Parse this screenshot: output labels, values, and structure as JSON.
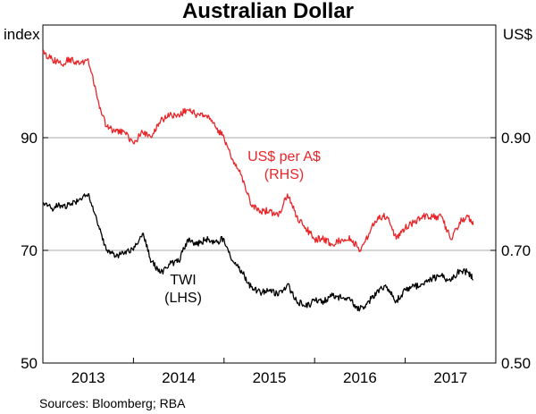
{
  "chart_data": {
    "type": "line",
    "title": "Australian Dollar",
    "source": "Sources: Bloomberg; RBA",
    "x_range": [
      2012.5,
      2017.5
    ],
    "x_ticks": [
      "2013",
      "2014",
      "2015",
      "2016",
      "2017"
    ],
    "x_tick_positions": [
      2013,
      2014,
      2015,
      2016,
      2017
    ],
    "left_axis": {
      "unit": "index",
      "range": [
        50,
        110
      ],
      "ticks": [
        50,
        70,
        90
      ],
      "tick_labels": [
        "50",
        "70",
        "90"
      ]
    },
    "right_axis": {
      "unit": "US$",
      "range": [
        0.5,
        1.1
      ],
      "ticks": [
        0.5,
        0.7,
        0.9
      ],
      "tick_labels": [
        "0.50",
        "0.70",
        "0.90"
      ]
    },
    "grid": "horizontal",
    "series": [
      {
        "name": "US$ per A$",
        "axis_note": "(RHS)",
        "axis": "right",
        "color": "#e8262a",
        "x": [
          2012.5,
          2012.6,
          2012.7,
          2012.8,
          2012.9,
          2013.0,
          2013.1,
          2013.2,
          2013.3,
          2013.4,
          2013.5,
          2013.6,
          2013.7,
          2013.8,
          2013.9,
          2014.0,
          2014.1,
          2014.2,
          2014.3,
          2014.4,
          2014.5,
          2014.6,
          2014.7,
          2014.8,
          2014.9,
          2015.0,
          2015.1,
          2015.2,
          2015.3,
          2015.4,
          2015.5,
          2015.6,
          2015.7,
          2015.8,
          2015.9,
          2016.0,
          2016.1,
          2016.2,
          2016.3,
          2016.4,
          2016.5,
          2016.6,
          2016.7,
          2016.8,
          2016.9,
          2017.0,
          2017.1,
          2017.2,
          2017.25
        ],
        "values": [
          1.05,
          1.04,
          1.03,
          1.04,
          1.03,
          1.04,
          0.97,
          0.92,
          0.91,
          0.91,
          0.89,
          0.91,
          0.9,
          0.93,
          0.94,
          0.94,
          0.95,
          0.94,
          0.94,
          0.92,
          0.9,
          0.86,
          0.83,
          0.78,
          0.77,
          0.77,
          0.76,
          0.8,
          0.76,
          0.74,
          0.72,
          0.72,
          0.71,
          0.72,
          0.72,
          0.7,
          0.73,
          0.76,
          0.76,
          0.72,
          0.74,
          0.75,
          0.76,
          0.76,
          0.76,
          0.72,
          0.75,
          0.76,
          0.745
        ]
      },
      {
        "name": "TWI",
        "axis_note": "(LHS)",
        "axis": "left",
        "color": "#000000",
        "x": [
          2012.5,
          2012.6,
          2012.7,
          2012.8,
          2012.9,
          2013.0,
          2013.1,
          2013.2,
          2013.3,
          2013.4,
          2013.5,
          2013.6,
          2013.7,
          2013.8,
          2013.9,
          2014.0,
          2014.1,
          2014.2,
          2014.3,
          2014.4,
          2014.5,
          2014.6,
          2014.7,
          2014.8,
          2014.9,
          2015.0,
          2015.1,
          2015.2,
          2015.3,
          2015.4,
          2015.5,
          2015.6,
          2015.7,
          2015.8,
          2015.9,
          2016.0,
          2016.1,
          2016.2,
          2016.3,
          2016.4,
          2016.5,
          2016.6,
          2016.7,
          2016.8,
          2016.9,
          2017.0,
          2017.1,
          2017.2,
          2017.25
        ],
        "values": [
          78.5,
          77.5,
          78.0,
          78.0,
          79.0,
          80.0,
          75.0,
          70.0,
          69.0,
          69.5,
          70.0,
          73.0,
          68.0,
          66.0,
          67.5,
          68.0,
          72.0,
          71.0,
          72.0,
          71.5,
          72.0,
          68.0,
          66.0,
          63.5,
          62.5,
          63.0,
          62.0,
          64.0,
          61.0,
          60.0,
          61.0,
          61.0,
          62.0,
          61.5,
          61.0,
          59.5,
          61.0,
          63.0,
          63.5,
          61.0,
          63.0,
          63.5,
          64.0,
          65.0,
          65.5,
          64.5,
          66.5,
          66.0,
          64.8
        ]
      }
    ]
  }
}
